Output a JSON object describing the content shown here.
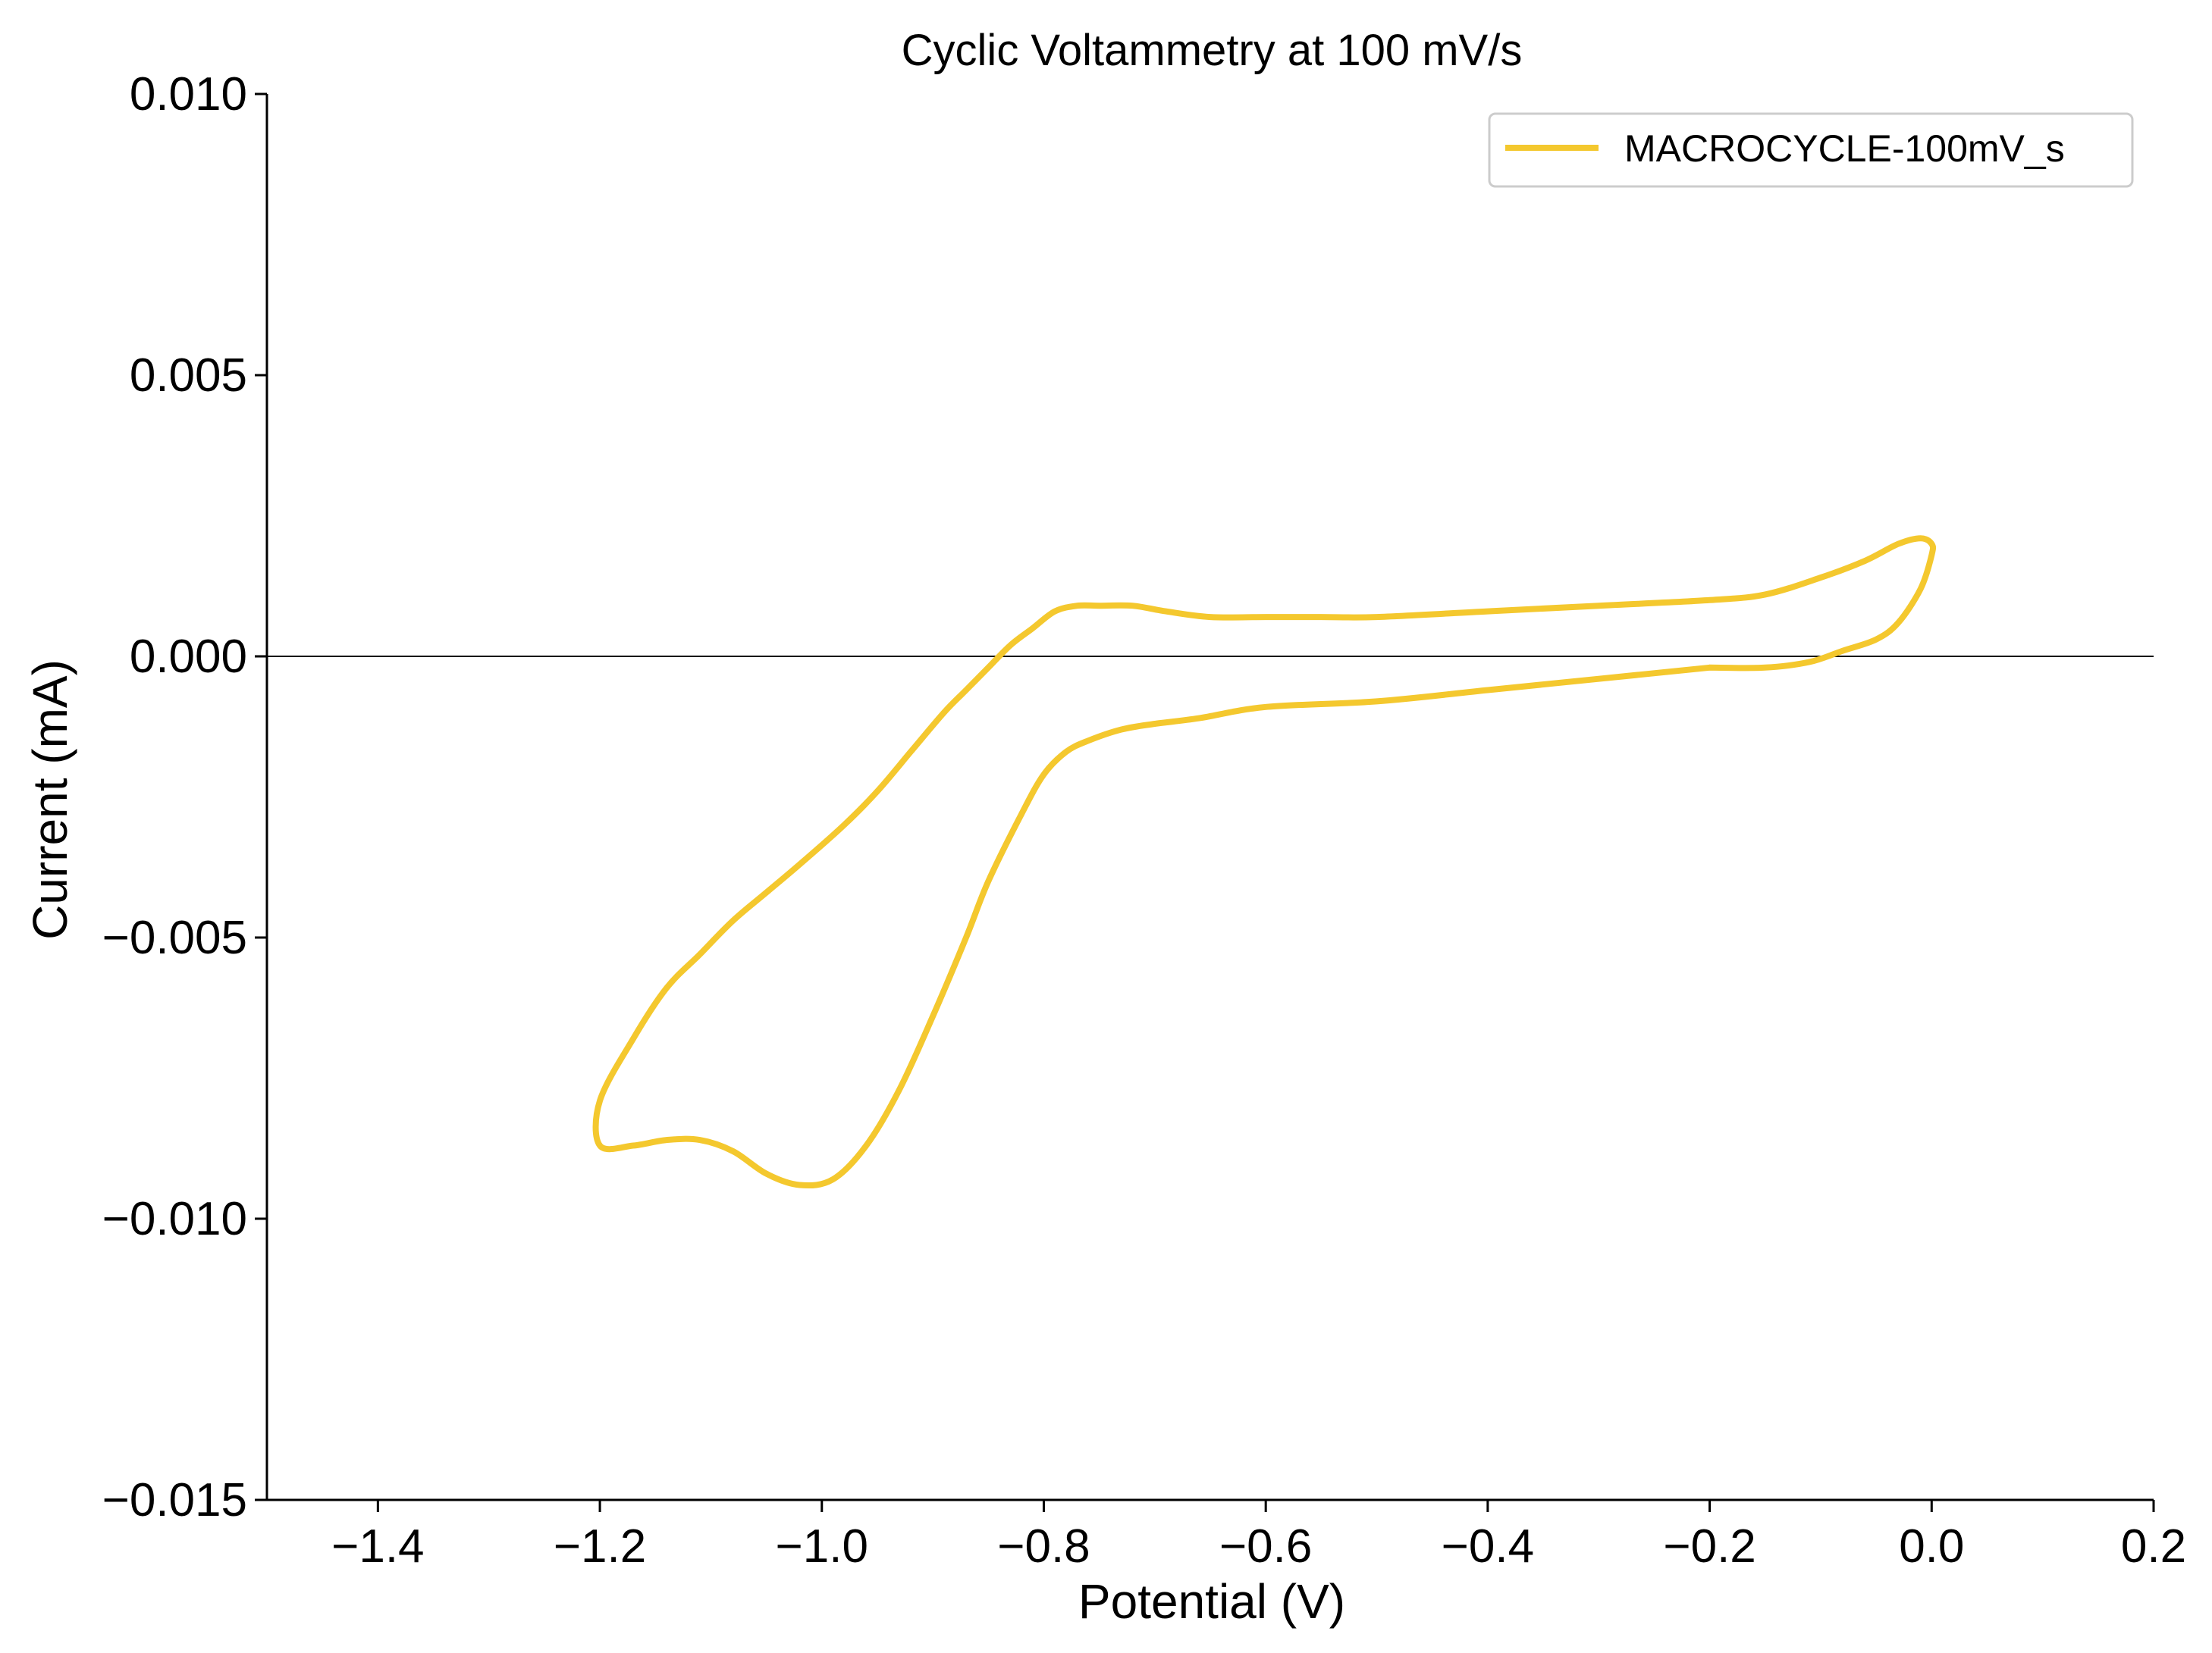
{
  "chart_data": {
    "type": "line",
    "title": "Cyclic Voltammetry at 100 mV/s",
    "xlabel": "Potential (V)",
    "ylabel": "Current (mA)",
    "xlim": [
      -1.5,
      0.2
    ],
    "ylim": [
      -0.015,
      0.01
    ],
    "x_ticks": [
      -1.4,
      -1.2,
      -1.0,
      -0.8,
      -0.6,
      -0.4,
      -0.2,
      0.0,
      0.2
    ],
    "x_tick_labels": [
      "−1.4",
      "−1.2",
      "−1.0",
      "−0.8",
      "−0.6",
      "−0.4",
      "−0.2",
      "0.0",
      "0.2"
    ],
    "y_ticks": [
      0.01,
      0.005,
      0.0,
      -0.005,
      -0.01,
      -0.015
    ],
    "y_tick_labels": [
      "0.010",
      "0.005",
      "0.000",
      "−0.005",
      "−0.010",
      "−0.015"
    ],
    "grid": false,
    "zero_line": true,
    "legend_position": "top-right",
    "series": [
      {
        "name": "MACROCYCLE-100mV_s",
        "color": "#F4C82E",
        "x": [
          -0.2,
          -0.3,
          -0.4,
          -0.5,
          -0.6,
          -0.66,
          -0.7,
          -0.73,
          -0.76,
          -0.78,
          -0.8,
          -0.82,
          -0.85,
          -0.87,
          -0.9,
          -0.93,
          -0.96,
          -0.99,
          -1.02,
          -1.05,
          -1.08,
          -1.11,
          -1.14,
          -1.17,
          -1.2,
          -1.2,
          -1.17,
          -1.14,
          -1.11,
          -1.08,
          -1.05,
          -1.02,
          -0.98,
          -0.95,
          -0.92,
          -0.89,
          -0.87,
          -0.85,
          -0.83,
          -0.81,
          -0.79,
          -0.77,
          -0.75,
          -0.72,
          -0.69,
          -0.65,
          -0.6,
          -0.55,
          -0.5,
          -0.4,
          -0.3,
          -0.2,
          -0.15,
          -0.1,
          -0.06,
          -0.03,
          -0.01,
          0.0,
          0.0,
          -0.01,
          -0.03,
          -0.05,
          -0.08,
          -0.11,
          -0.15,
          -0.2
        ],
        "y": [
          -0.0002,
          -0.0004,
          -0.0006,
          -0.0008,
          -0.0009,
          -0.0011,
          -0.0012,
          -0.0013,
          -0.0015,
          -0.0017,
          -0.0021,
          -0.0028,
          -0.004,
          -0.005,
          -0.0064,
          -0.0077,
          -0.0087,
          -0.0093,
          -0.0094,
          -0.0092,
          -0.0088,
          -0.0086,
          -0.0086,
          -0.0087,
          -0.0087,
          -0.0079,
          -0.0068,
          -0.0059,
          -0.0053,
          -0.0047,
          -0.0042,
          -0.0037,
          -0.003,
          -0.0024,
          -0.0017,
          -0.001,
          -0.0006,
          -0.0002,
          0.0002,
          0.0005,
          0.0008,
          0.0009,
          0.0009,
          0.0009,
          0.0008,
          0.0007,
          0.0007,
          0.0007,
          0.0007,
          0.0008,
          0.0009,
          0.001,
          0.0011,
          0.0014,
          0.0017,
          0.002,
          0.0021,
          0.002,
          0.0018,
          0.0012,
          0.0006,
          0.0003,
          0.0001,
          -0.0001,
          -0.0002,
          -0.0002
        ]
      }
    ]
  }
}
